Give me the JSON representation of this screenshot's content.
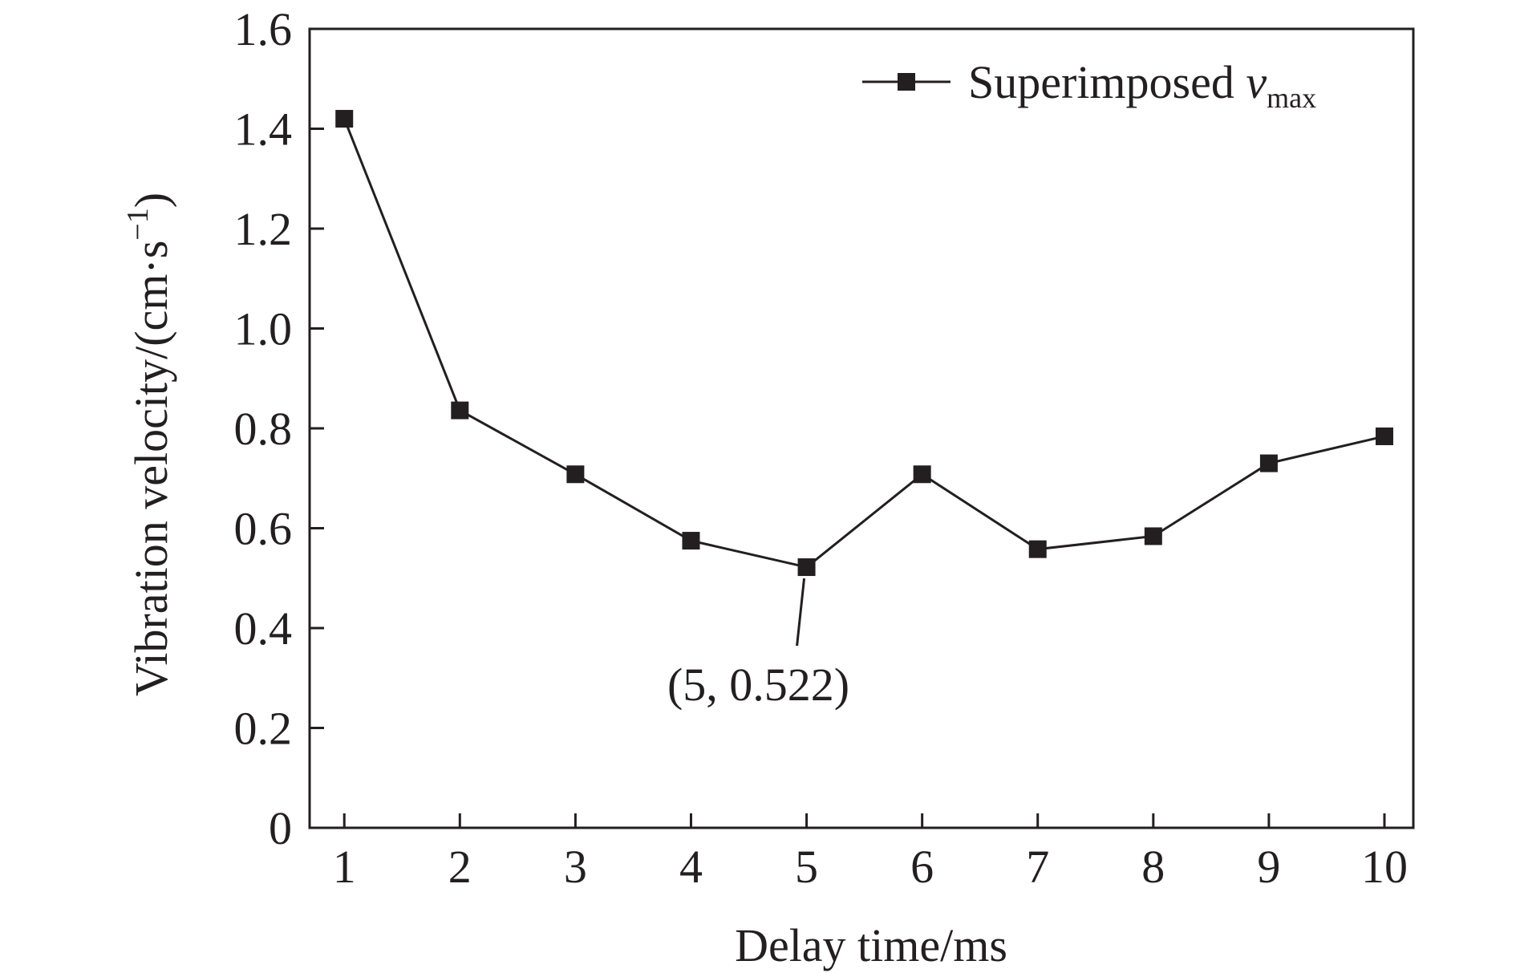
{
  "chart_data": {
    "type": "line",
    "title": "",
    "xlabel": "Delay time/ms",
    "ylabel": "Vibration velocity/(cm·s",
    "ylabel_sup": "−1",
    "ylabel_close": ")",
    "xlim": [
      0.7,
      10.25
    ],
    "ylim": [
      0,
      1.6
    ],
    "x_ticks": [
      1,
      2,
      3,
      4,
      5,
      6,
      7,
      8,
      9,
      10
    ],
    "x_tick_labels": [
      "1",
      "2",
      "3",
      "4",
      "5",
      "6",
      "7",
      "8",
      "9",
      "10"
    ],
    "y_ticks": [
      0,
      0.2,
      0.4,
      0.6,
      0.8,
      1.0,
      1.2,
      1.4,
      1.6
    ],
    "y_tick_labels": [
      "0",
      "0.2",
      "0.4",
      "0.6",
      "0.8",
      "1.0",
      "1.2",
      "1.4",
      "1.6"
    ],
    "grid": false,
    "legend_position": "top-right",
    "legend": {
      "label": "Superimposed ",
      "label_italic": "v",
      "label_sub": "max"
    },
    "series": [
      {
        "name": "Superimposed vmax",
        "marker": "square",
        "color": "#231f20",
        "x": [
          1,
          2,
          3,
          4,
          5,
          6,
          7,
          8,
          9,
          10
        ],
        "values": [
          1.42,
          0.836,
          0.708,
          0.575,
          0.522,
          0.708,
          0.558,
          0.584,
          0.73,
          0.784
        ]
      }
    ],
    "annotations": [
      {
        "text": "(5, 0.522)",
        "x": 5,
        "y": 0.522
      }
    ]
  }
}
